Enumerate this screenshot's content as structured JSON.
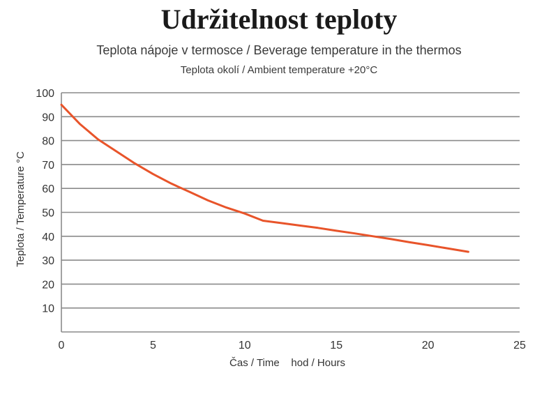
{
  "title": "Udržitelnost teploty",
  "chart_data": {
    "type": "line",
    "title": "Teplota nápoje v termosce / Beverage temperature in the thermos",
    "subtitle": "Teplota okolí / Ambient temperature +20°C",
    "xlabel": "Čas / Time    hod / Hours",
    "ylabel": "Teplota / Temperature °C",
    "xlim": [
      0,
      25
    ],
    "ylim": [
      0,
      100
    ],
    "xticks": [
      0,
      5,
      10,
      15,
      20,
      25
    ],
    "yticks": [
      10,
      20,
      30,
      40,
      50,
      60,
      70,
      80,
      90,
      100
    ],
    "grid": "horizontal",
    "colors": {
      "line": "#e8542a",
      "grid": "#8a8a8a",
      "axis": "#8a8a8a"
    },
    "series": [
      {
        "x": [
          0,
          0.5,
          1,
          2,
          3,
          4,
          5,
          6,
          7,
          8,
          9,
          10,
          11,
          12,
          13,
          14,
          15,
          16,
          17,
          18,
          19,
          20,
          21,
          22.2
        ],
        "values": [
          95,
          91,
          87,
          80.5,
          75.5,
          70.5,
          66,
          62,
          58.5,
          55,
          52,
          49.5,
          46.5,
          45.5,
          44.5,
          43.5,
          42.3,
          41.2,
          40,
          38.8,
          37.5,
          36.3,
          35,
          33.5
        ]
      }
    ]
  }
}
